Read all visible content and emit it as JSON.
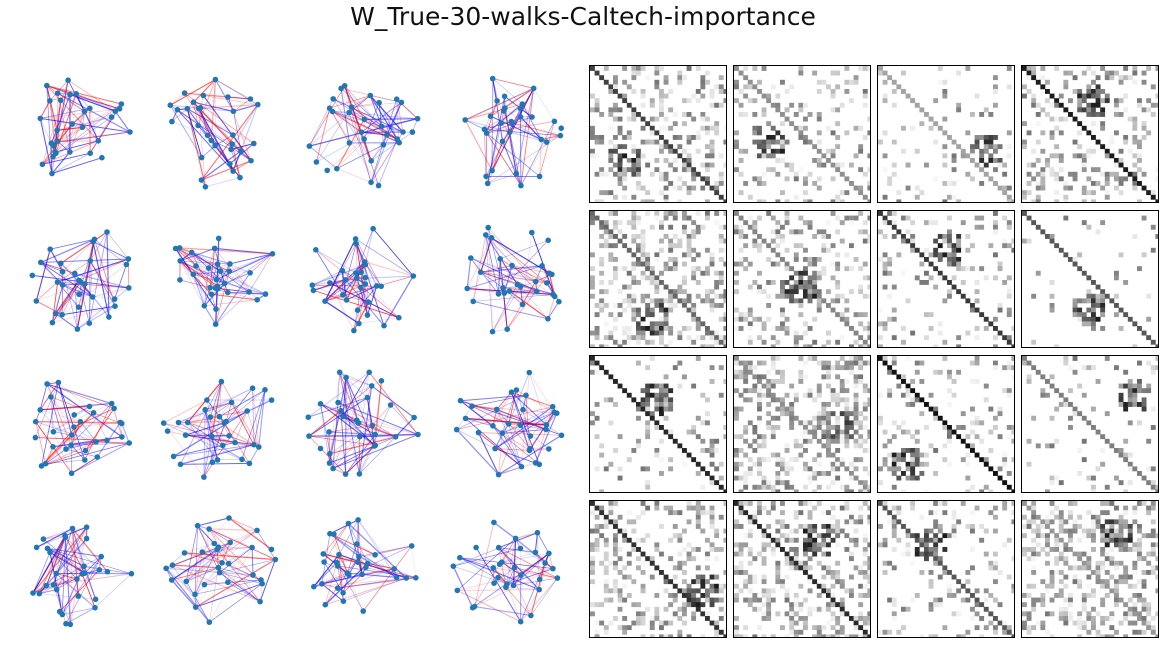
{
  "figure": {
    "title": "W_True-30-walks-Caltech-importance"
  },
  "colors": {
    "node": "#1f77b4",
    "edge_positive": "#0000ff",
    "edge_negative": "#ff0000",
    "matrix_max": "#000000",
    "matrix_min": "#ffffff"
  },
  "grid": {
    "rows": 4,
    "graph_columns": 4,
    "matrix_columns": 4
  }
}
